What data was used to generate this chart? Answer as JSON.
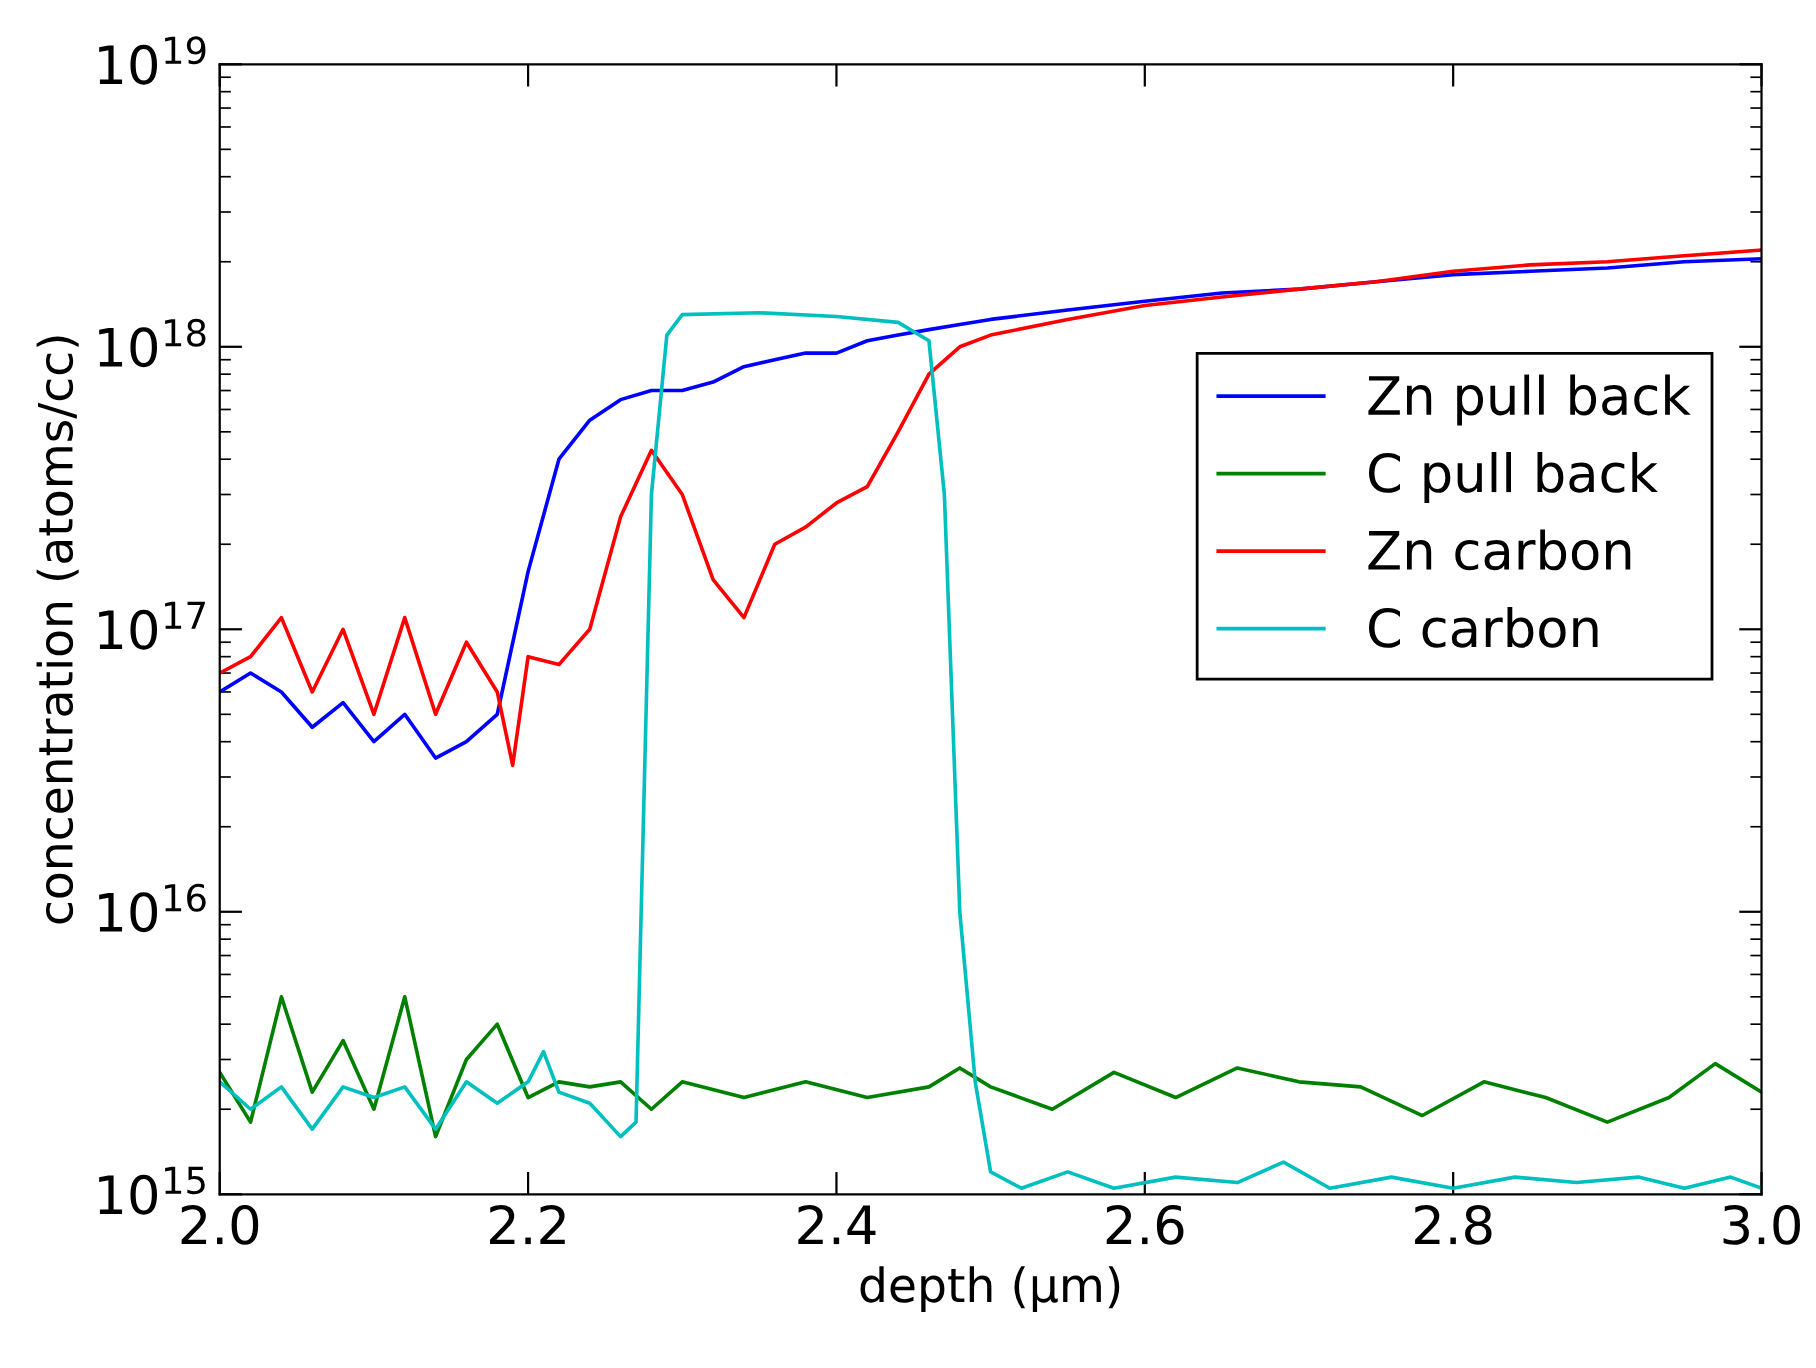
{
  "chart_data": {
    "type": "line",
    "xlabel": "depth (μm)",
    "ylabel": "concentration (atoms/cc)",
    "log": "y",
    "grid": false,
    "legend": "right",
    "marker": "none",
    "line_style": "solid",
    "xlim": [
      2.0,
      3.0
    ],
    "xticks": [
      {
        "value": 2.0,
        "label": "2.0"
      },
      {
        "value": 2.2,
        "label": "2.2"
      },
      {
        "value": 2.4,
        "label": "2.4"
      },
      {
        "value": 2.6,
        "label": "2.6"
      },
      {
        "value": 2.8,
        "label": "2.8"
      },
      {
        "value": 3.0,
        "label": "3.0"
      }
    ],
    "ylim": [
      1000000000000000.0,
      1e+19
    ],
    "yticks": [
      {
        "value": 1000000000000000.0,
        "label": "10$^{15}$"
      },
      {
        "value": 1e+16,
        "label": "10$^{16}$"
      },
      {
        "value": 1e+17,
        "label": "10$^{17}$"
      },
      {
        "value": 1e+18,
        "label": "10$^{18}$"
      },
      {
        "value": 1e+19,
        "label": "10$^{19}$"
      }
    ],
    "series": [
      {
        "name": "Zn pull back",
        "color": "#0000ff",
        "x": [
          2.0,
          2.02,
          2.04,
          2.06,
          2.08,
          2.1,
          2.12,
          2.14,
          2.16,
          2.18,
          2.2,
          2.22,
          2.24,
          2.26,
          2.28,
          2.3,
          2.32,
          2.34,
          2.36,
          2.38,
          2.4,
          2.42,
          2.44,
          2.46,
          2.48,
          2.5,
          2.55,
          2.6,
          2.65,
          2.7,
          2.75,
          2.8,
          2.85,
          2.9,
          2.95,
          3.0
        ],
        "values": [
          6e+16,
          7e+16,
          6e+16,
          4.5e+16,
          5.5e+16,
          4e+16,
          5e+16,
          3.5e+16,
          4e+16,
          5e+16,
          1.6e+17,
          4e+17,
          5.5e+17,
          6.5e+17,
          7e+17,
          7e+17,
          7.5e+17,
          8.5e+17,
          9e+17,
          9.5e+17,
          9.5e+17,
          1.05e+18,
          1.1e+18,
          1.15e+18,
          1.2e+18,
          1.25e+18,
          1.35e+18,
          1.45e+18,
          1.55e+18,
          1.6e+18,
          1.7e+18,
          1.8e+18,
          1.85e+18,
          1.9e+18,
          2e+18,
          2.05e+18
        ]
      },
      {
        "name": "C pull back",
        "color": "#008000",
        "x": [
          2.0,
          2.02,
          2.04,
          2.06,
          2.08,
          2.1,
          2.12,
          2.14,
          2.16,
          2.18,
          2.2,
          2.22,
          2.24,
          2.26,
          2.28,
          2.3,
          2.34,
          2.38,
          2.42,
          2.46,
          2.48,
          2.5,
          2.54,
          2.58,
          2.62,
          2.66,
          2.7,
          2.74,
          2.78,
          2.82,
          2.86,
          2.9,
          2.94,
          2.97,
          3.0
        ],
        "values": [
          2700000000000000.0,
          1800000000000000.0,
          5000000000000000.0,
          2300000000000000.0,
          3500000000000000.0,
          2000000000000000.0,
          5000000000000000.0,
          1600000000000000.0,
          3000000000000000.0,
          4000000000000000.0,
          2200000000000000.0,
          2500000000000000.0,
          2400000000000000.0,
          2500000000000000.0,
          2000000000000000.0,
          2500000000000000.0,
          2200000000000000.0,
          2500000000000000.0,
          2200000000000000.0,
          2400000000000000.0,
          2800000000000000.0,
          2400000000000000.0,
          2000000000000000.0,
          2700000000000000.0,
          2200000000000000.0,
          2800000000000000.0,
          2500000000000000.0,
          2400000000000000.0,
          1900000000000000.0,
          2500000000000000.0,
          2200000000000000.0,
          1800000000000000.0,
          2200000000000000.0,
          2900000000000000.0,
          2300000000000000.0
        ]
      },
      {
        "name": "Zn carbon",
        "color": "#ff0000",
        "x": [
          2.0,
          2.02,
          2.04,
          2.06,
          2.08,
          2.1,
          2.12,
          2.14,
          2.16,
          2.18,
          2.19,
          2.2,
          2.22,
          2.24,
          2.26,
          2.28,
          2.3,
          2.32,
          2.34,
          2.36,
          2.38,
          2.4,
          2.42,
          2.44,
          2.46,
          2.48,
          2.5,
          2.55,
          2.6,
          2.65,
          2.7,
          2.75,
          2.8,
          2.85,
          2.9,
          2.95,
          3.0
        ],
        "values": [
          7e+16,
          8e+16,
          1.1e+17,
          6e+16,
          1e+17,
          5e+16,
          1.1e+17,
          5e+16,
          9e+16,
          6e+16,
          3.3e+16,
          8e+16,
          7.5e+16,
          1e+17,
          2.5e+17,
          4.3e+17,
          3e+17,
          1.5e+17,
          1.1e+17,
          2e+17,
          2.3e+17,
          2.8e+17,
          3.2e+17,
          5e+17,
          8e+17,
          1e+18,
          1.1e+18,
          1.25e+18,
          1.4e+18,
          1.5e+18,
          1.6e+18,
          1.7e+18,
          1.85e+18,
          1.95e+18,
          2e+18,
          2.1e+18,
          2.2e+18
        ]
      },
      {
        "name": "C carbon",
        "color": "#00bfbf",
        "x": [
          2.0,
          2.02,
          2.04,
          2.06,
          2.08,
          2.1,
          2.12,
          2.14,
          2.16,
          2.18,
          2.2,
          2.21,
          2.22,
          2.24,
          2.26,
          2.27,
          2.28,
          2.29,
          2.3,
          2.35,
          2.4,
          2.44,
          2.46,
          2.47,
          2.48,
          2.49,
          2.5,
          2.52,
          2.55,
          2.58,
          2.62,
          2.66,
          2.69,
          2.72,
          2.76,
          2.8,
          2.84,
          2.88,
          2.92,
          2.95,
          2.98,
          3.0
        ],
        "values": [
          2500000000000000.0,
          2000000000000000.0,
          2400000000000000.0,
          1700000000000000.0,
          2400000000000000.0,
          2200000000000000.0,
          2400000000000000.0,
          1700000000000000.0,
          2500000000000000.0,
          2100000000000000.0,
          2500000000000000.0,
          3200000000000000.0,
          2300000000000000.0,
          2100000000000000.0,
          1600000000000000.0,
          1800000000000000.0,
          3e+17,
          1.1e+18,
          1.3e+18,
          1.32e+18,
          1.28e+18,
          1.22e+18,
          1.05e+18,
          3e+17,
          1e+16,
          2500000000000000.0,
          1200000000000000.0,
          1050000000000000.0,
          1200000000000000.0,
          1050000000000000.0,
          1150000000000000.0,
          1100000000000000.0,
          1300000000000000.0,
          1050000000000000.0,
          1150000000000000.0,
          1050000000000000.0,
          1150000000000000.0,
          1100000000000000.0,
          1150000000000000.0,
          1050000000000000.0,
          1150000000000000.0,
          1050000000000000.0
        ]
      }
    ]
  }
}
